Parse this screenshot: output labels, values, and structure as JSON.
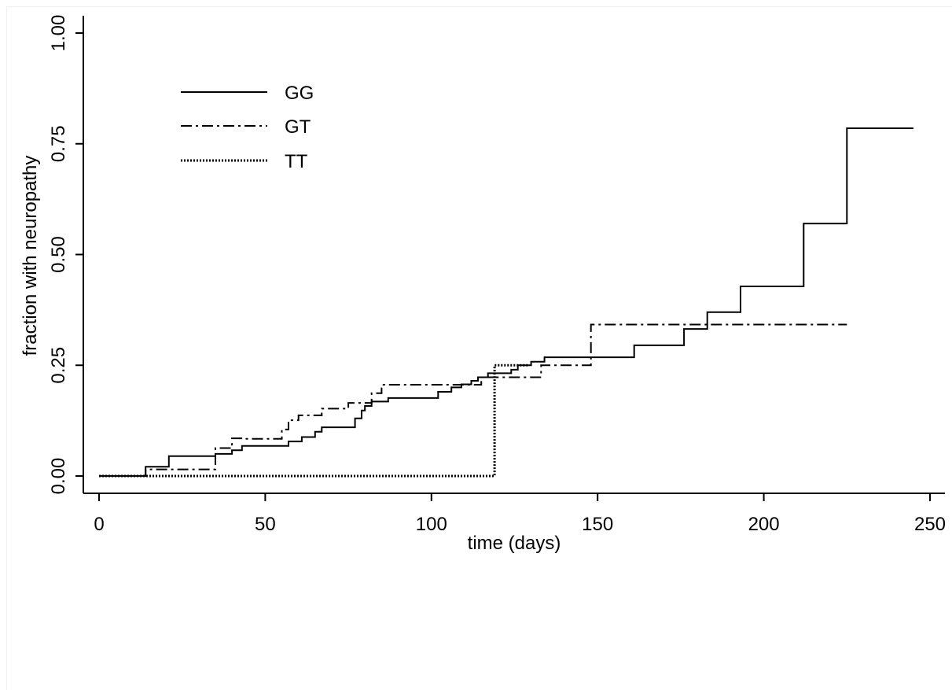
{
  "chart_data": {
    "type": "line",
    "step": true,
    "title": "",
    "xlabel": "time (days)",
    "ylabel": "fraction with neuropathy",
    "xlim": [
      0,
      250
    ],
    "ylim": [
      0,
      1
    ],
    "xticks": [
      "0",
      "50",
      "100",
      "150",
      "200",
      "250"
    ],
    "yticks": [
      "0.00",
      "0.25",
      "0.50",
      "0.75",
      "1.00"
    ],
    "grid": false,
    "legend": {
      "placement": "top-left"
    },
    "series": [
      {
        "name": "GG",
        "style": "solid",
        "points": [
          [
            0,
            0
          ],
          [
            14,
            0
          ],
          [
            14,
            0.021
          ],
          [
            21,
            0.021
          ],
          [
            21,
            0.045
          ],
          [
            35,
            0.045
          ],
          [
            35,
            0.05
          ],
          [
            40,
            0.05
          ],
          [
            40,
            0.058
          ],
          [
            43,
            0.058
          ],
          [
            43,
            0.068
          ],
          [
            57,
            0.068
          ],
          [
            57,
            0.078
          ],
          [
            61,
            0.078
          ],
          [
            61,
            0.088
          ],
          [
            65,
            0.088
          ],
          [
            65,
            0.1
          ],
          [
            67,
            0.1
          ],
          [
            67,
            0.11
          ],
          [
            77,
            0.11
          ],
          [
            77,
            0.13
          ],
          [
            79,
            0.13
          ],
          [
            79,
            0.148
          ],
          [
            80,
            0.148
          ],
          [
            80,
            0.158
          ],
          [
            82,
            0.158
          ],
          [
            82,
            0.168
          ],
          [
            87,
            0.168
          ],
          [
            87,
            0.176
          ],
          [
            102,
            0.176
          ],
          [
            102,
            0.19
          ],
          [
            106,
            0.19
          ],
          [
            106,
            0.2
          ],
          [
            109,
            0.2
          ],
          [
            109,
            0.207
          ],
          [
            112,
            0.207
          ],
          [
            112,
            0.215
          ],
          [
            114,
            0.215
          ],
          [
            114,
            0.223
          ],
          [
            117,
            0.223
          ],
          [
            117,
            0.232
          ],
          [
            124,
            0.232
          ],
          [
            124,
            0.24
          ],
          [
            126,
            0.24
          ],
          [
            126,
            0.25
          ],
          [
            130,
            0.25
          ],
          [
            130,
            0.258
          ],
          [
            134,
            0.258
          ],
          [
            134,
            0.268
          ],
          [
            161,
            0.268
          ],
          [
            161,
            0.295
          ],
          [
            176,
            0.295
          ],
          [
            176,
            0.332
          ],
          [
            183,
            0.332
          ],
          [
            183,
            0.37
          ],
          [
            193,
            0.37
          ],
          [
            193,
            0.428
          ],
          [
            212,
            0.428
          ],
          [
            212,
            0.57
          ],
          [
            225,
            0.57
          ],
          [
            225,
            0.785
          ],
          [
            245,
            0.785
          ]
        ]
      },
      {
        "name": "GT",
        "style": "dashdot",
        "points": [
          [
            0,
            0
          ],
          [
            14,
            0
          ],
          [
            14,
            0.015
          ],
          [
            35,
            0.015
          ],
          [
            35,
            0.063
          ],
          [
            40,
            0.063
          ],
          [
            40,
            0.085
          ],
          [
            44,
            0.085
          ],
          [
            44,
            0.084
          ],
          [
            55,
            0.084
          ],
          [
            55,
            0.105
          ],
          [
            57,
            0.105
          ],
          [
            57,
            0.126
          ],
          [
            60,
            0.126
          ],
          [
            60,
            0.137
          ],
          [
            67,
            0.137
          ],
          [
            67,
            0.152
          ],
          [
            75,
            0.152
          ],
          [
            75,
            0.165
          ],
          [
            82,
            0.165
          ],
          [
            82,
            0.187
          ],
          [
            85,
            0.187
          ],
          [
            85,
            0.206
          ],
          [
            115,
            0.206
          ],
          [
            115,
            0.223
          ],
          [
            133,
            0.223
          ],
          [
            133,
            0.25
          ],
          [
            148,
            0.25
          ],
          [
            148,
            0.342
          ],
          [
            225,
            0.342
          ]
        ]
      },
      {
        "name": "TT",
        "style": "dotted",
        "points": [
          [
            0,
            0
          ],
          [
            119,
            0
          ],
          [
            119,
            0.25
          ],
          [
            129,
            0.25
          ]
        ]
      }
    ]
  }
}
